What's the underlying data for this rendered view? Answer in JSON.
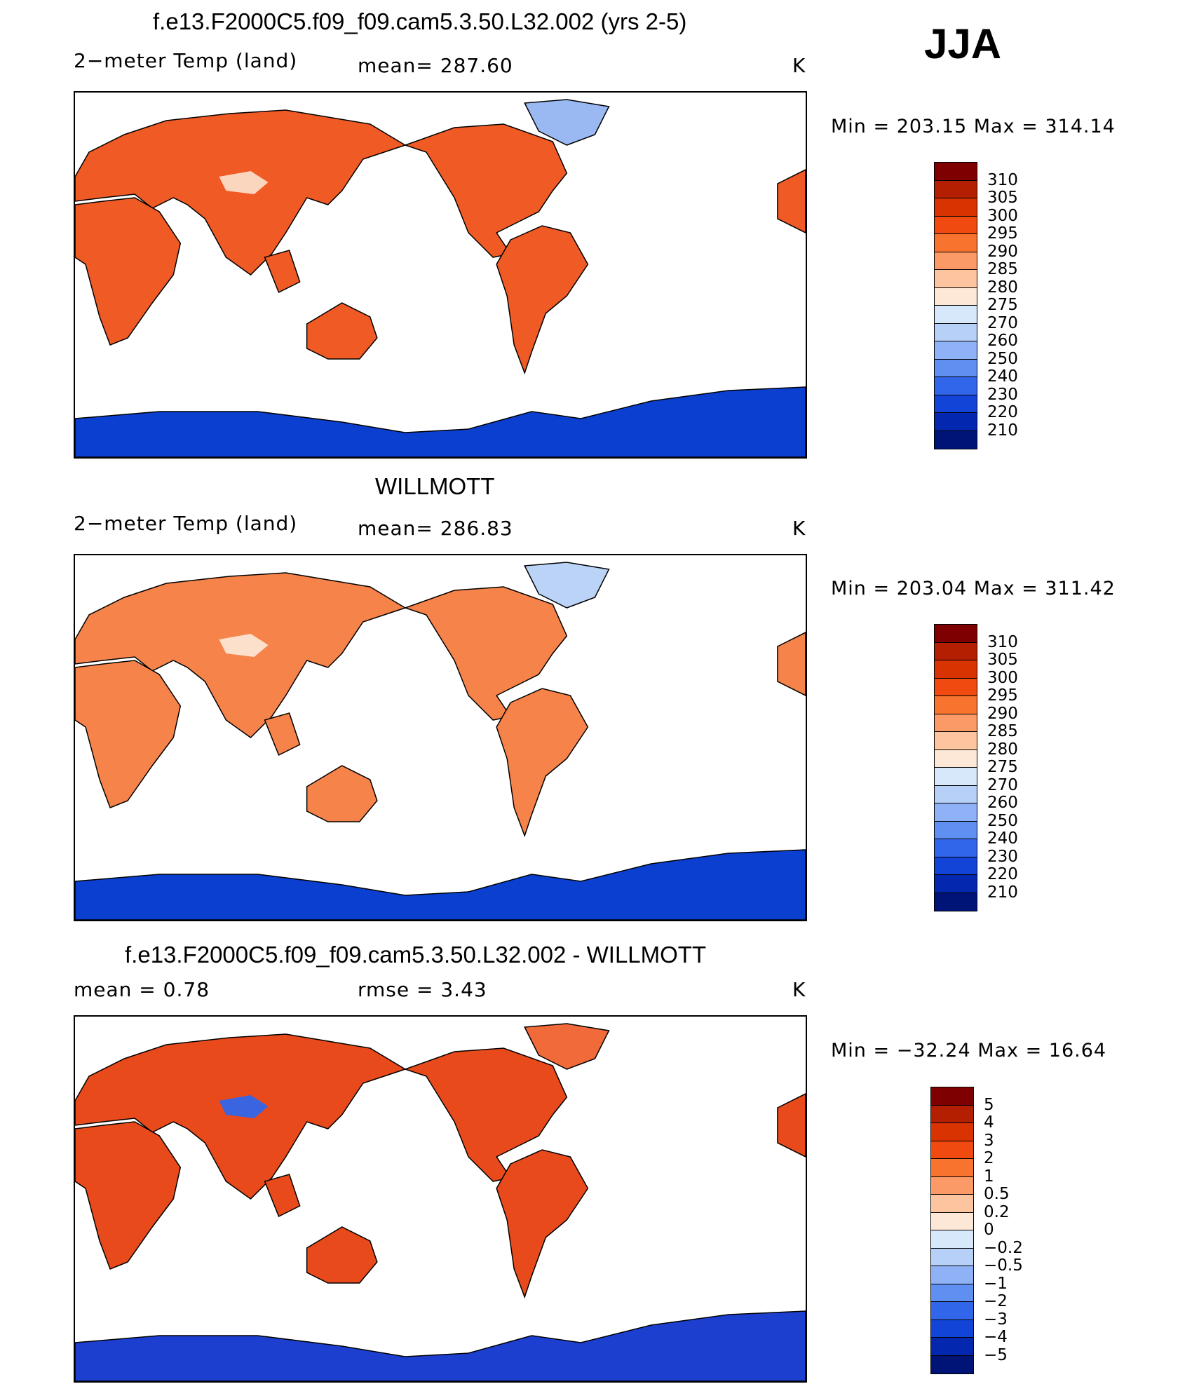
{
  "season": "JJA",
  "panels": [
    {
      "title": "f.e13.F2000C5.f09_f09.cam5.3.50.L32.002 (yrs 2-5)",
      "left_label": "2−meter Temp (land)",
      "center_label": "mean= 287.60",
      "units": "K",
      "minmax": "Min = 203.15 Max = 314.14",
      "colorbar": {
        "labels": [
          "310",
          "305",
          "300",
          "295",
          "290",
          "285",
          "280",
          "275",
          "270",
          "260",
          "250",
          "240",
          "230",
          "220",
          "210"
        ],
        "colors": [
          "#7f0000",
          "#b31f00",
          "#d83300",
          "#f04a10",
          "#f8742e",
          "#fb9a66",
          "#fdc4a0",
          "#fde7d6",
          "#d8e8fb",
          "#b7d0f8",
          "#8fb1f5",
          "#5f8ff0",
          "#3266ea",
          "#1344d8",
          "#0427b0",
          "#001478"
        ]
      },
      "map": {
        "land": "#f05a25",
        "tibet": "#fbd6be",
        "greenland": "#9ab9f3",
        "antarctica": "#0b3fcf"
      }
    },
    {
      "title": "WILLMOTT",
      "left_label": "2−meter Temp (land)",
      "center_label": "mean= 286.83",
      "units": "K",
      "minmax": "Min = 203.04 Max = 311.42",
      "colorbar": {
        "labels": [
          "310",
          "305",
          "300",
          "295",
          "290",
          "285",
          "280",
          "275",
          "270",
          "260",
          "250",
          "240",
          "230",
          "220",
          "210"
        ],
        "colors": [
          "#7f0000",
          "#b31f00",
          "#d83300",
          "#f04a10",
          "#f8742e",
          "#fb9a66",
          "#fdc4a0",
          "#fde7d6",
          "#d8e8fb",
          "#b7d0f8",
          "#8fb1f5",
          "#5f8ff0",
          "#3266ea",
          "#1344d8",
          "#0427b0",
          "#001478"
        ]
      },
      "map": {
        "land": "#f6834a",
        "tibet": "#fde0cc",
        "greenland": "#bcd3f8",
        "antarctica": "#0b3fcf"
      }
    },
    {
      "title": "f.e13.F2000C5.f09_f09.cam5.3.50.L32.002 - WILLMOTT",
      "left_label": "mean = 0.78",
      "center_label": "rmse = 3.43",
      "units": "K",
      "minmax": "Min = −32.24 Max = 16.64",
      "colorbar": {
        "labels": [
          "5",
          "4",
          "3",
          "2",
          "1",
          "0.5",
          "0.2",
          "0",
          "−0.2",
          "−0.5",
          "−1",
          "−2",
          "−3",
          "−4",
          "−5"
        ],
        "colors": [
          "#7f0000",
          "#b31f00",
          "#d83300",
          "#f04a10",
          "#f8742e",
          "#fb9a66",
          "#fdc4a0",
          "#fde7d6",
          "#d8e8fb",
          "#b7d0f8",
          "#8fb1f5",
          "#5f8ff0",
          "#3266ea",
          "#1344d8",
          "#0427b0",
          "#001478"
        ]
      },
      "map": {
        "land": "#e84a1c",
        "tibet": "#3a64e0",
        "greenland": "#f06a3a",
        "antarctica": "#1d3fd0"
      }
    }
  ]
}
